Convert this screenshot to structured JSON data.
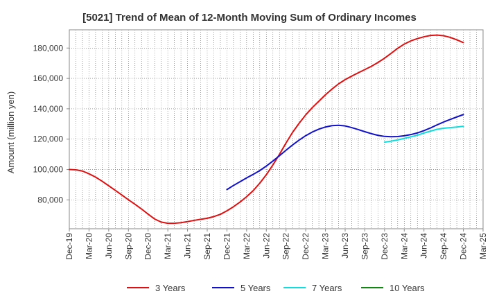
{
  "chart_data": {
    "type": "line",
    "title": "[5021]  Trend of Mean of 12-Month Moving Sum of Ordinary Incomes",
    "xlabel": "",
    "ylabel": "Amount (million yen)",
    "ylim": [
      61000,
      192000
    ],
    "yticks": [
      80000,
      100000,
      120000,
      140000,
      160000,
      180000
    ],
    "ytick_labels": [
      "80,000",
      "100,000",
      "120,000",
      "140,000",
      "160,000",
      "180,000"
    ],
    "x_start_month": "2019-12",
    "x_end_month": "2025-03",
    "xtick_labels": [
      "Dec-19",
      "Mar-20",
      "Jun-20",
      "Sep-20",
      "Dec-20",
      "Mar-21",
      "Jun-21",
      "Sep-21",
      "Dec-21",
      "Mar-22",
      "Jun-22",
      "Sep-22",
      "Dec-22",
      "Mar-23",
      "Jun-23",
      "Sep-23",
      "Dec-23",
      "Mar-24",
      "Jun-24",
      "Sep-24",
      "Dec-24",
      "Mar-25"
    ],
    "grid": true,
    "legend_position": "bottom",
    "series": [
      {
        "name": "3 Years",
        "color": "#dd1111",
        "x": [
          0,
          1,
          2,
          3,
          4,
          5,
          6,
          7,
          8,
          9,
          10,
          11,
          12,
          13,
          14,
          15,
          16,
          17,
          18,
          19,
          20,
          21,
          22,
          23,
          24,
          25,
          26,
          27,
          28,
          29,
          30,
          31,
          32,
          33,
          34,
          35,
          36,
          37,
          38,
          39,
          40,
          41,
          42,
          43,
          44,
          45,
          46,
          47,
          48,
          49,
          50,
          51,
          52,
          53,
          54,
          55,
          56,
          57,
          58,
          59,
          60
        ],
        "values": [
          100000,
          99800,
          99000,
          97200,
          95000,
          92300,
          89300,
          86300,
          83200,
          80100,
          77100,
          74000,
          70600,
          67400,
          65400,
          64600,
          64600,
          65000,
          65700,
          66500,
          67200,
          67900,
          69000,
          70500,
          72800,
          75500,
          78600,
          82100,
          86100,
          91000,
          96600,
          103000,
          110000,
          117500,
          124500,
          130500,
          136000,
          140800,
          145000,
          149200,
          153000,
          156400,
          159200,
          161500,
          163700,
          165800,
          168000,
          170500,
          173300,
          176500,
          179800,
          182600,
          184700,
          186200,
          187400,
          188300,
          188500,
          188100,
          187000,
          185400,
          183600
        ]
      },
      {
        "name": "5 Years",
        "color": "#1111cc",
        "x": [
          24,
          25,
          26,
          27,
          28,
          29,
          30,
          31,
          32,
          33,
          34,
          35,
          36,
          37,
          38,
          39,
          40,
          41,
          42,
          43,
          44,
          45,
          46,
          47,
          48,
          49,
          50,
          51,
          52,
          53,
          54,
          55,
          56,
          57,
          58,
          59,
          60
        ],
        "values": [
          86800,
          89500,
          92000,
          94500,
          96800,
          99300,
          102300,
          105600,
          109100,
          112700,
          116200,
          119400,
          122300,
          124700,
          126600,
          128000,
          128900,
          129100,
          128700,
          127600,
          126300,
          124900,
          123600,
          122500,
          121800,
          121600,
          121700,
          122200,
          123000,
          124100,
          125600,
          127400,
          129400,
          131300,
          133000,
          134600,
          136200
        ]
      },
      {
        "name": "7 Years",
        "color": "#11dddd",
        "x": [
          48,
          49,
          50,
          51,
          52,
          53,
          54,
          55,
          56,
          57,
          58,
          59,
          60
        ],
        "values": [
          118000,
          118700,
          119500,
          120500,
          121500,
          122600,
          124000,
          125300,
          126500,
          127200,
          127600,
          128000,
          128500
        ]
      },
      {
        "name": "10 Years",
        "color": "#118811",
        "x": [],
        "values": []
      }
    ]
  }
}
